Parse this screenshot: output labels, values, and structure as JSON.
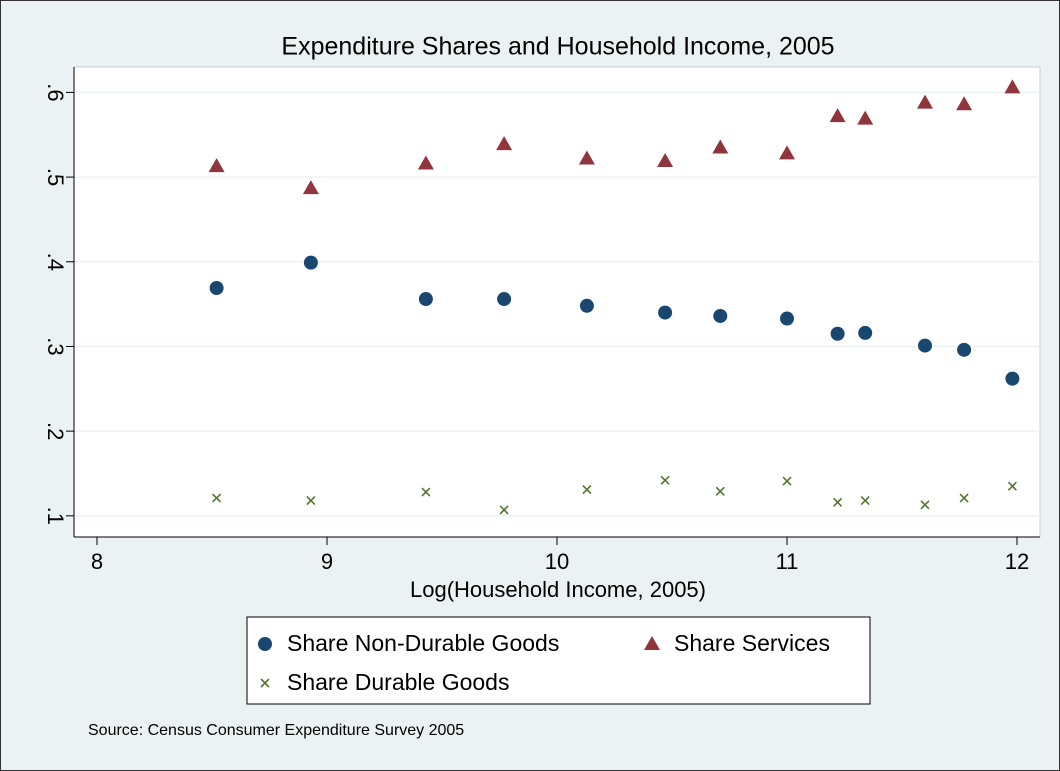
{
  "chart_data": {
    "type": "scatter",
    "title": "Expenditure Shares and Household Income, 2005",
    "x_label": "Log(Household Income, 2005)",
    "note": "Source: Census Consumer Expenditure Survey 2005",
    "x": [
      8.52,
      8.93,
      9.43,
      9.77,
      10.13,
      10.47,
      10.71,
      11.0,
      11.22,
      11.34,
      11.6,
      11.77,
      11.98
    ],
    "series": [
      {
        "name": "Share Non-Durable Goods",
        "color": "#1a476f",
        "marker": "circle",
        "values": [
          0.369,
          0.399,
          0.356,
          0.356,
          0.348,
          0.34,
          0.336,
          0.333,
          0.315,
          0.316,
          0.301,
          0.296,
          0.262
        ]
      },
      {
        "name": "Share Services",
        "color": "#90353b",
        "marker": "triangle",
        "values": [
          0.513,
          0.487,
          0.516,
          0.539,
          0.522,
          0.519,
          0.535,
          0.528,
          0.572,
          0.569,
          0.588,
          0.586,
          0.606
        ]
      },
      {
        "name": "Share Durable Goods",
        "color": "#55752f",
        "marker": "x",
        "values": [
          0.121,
          0.118,
          0.128,
          0.107,
          0.131,
          0.142,
          0.129,
          0.141,
          0.116,
          0.118,
          0.113,
          0.121,
          0.135
        ]
      }
    ],
    "xlim": [
      7.9,
      12.1
    ],
    "xticks": [
      8,
      9,
      10,
      11,
      12
    ],
    "ylim": [
      0.075,
      0.63
    ],
    "yticks": [
      {
        "value": 0.1,
        "label": ".1"
      },
      {
        "value": 0.2,
        "label": ".2"
      },
      {
        "value": 0.3,
        "label": ".3"
      },
      {
        "value": 0.4,
        "label": ".4"
      },
      {
        "value": 0.5,
        "label": ".5"
      },
      {
        "value": 0.6,
        "label": ".6"
      }
    ],
    "grid": true
  }
}
